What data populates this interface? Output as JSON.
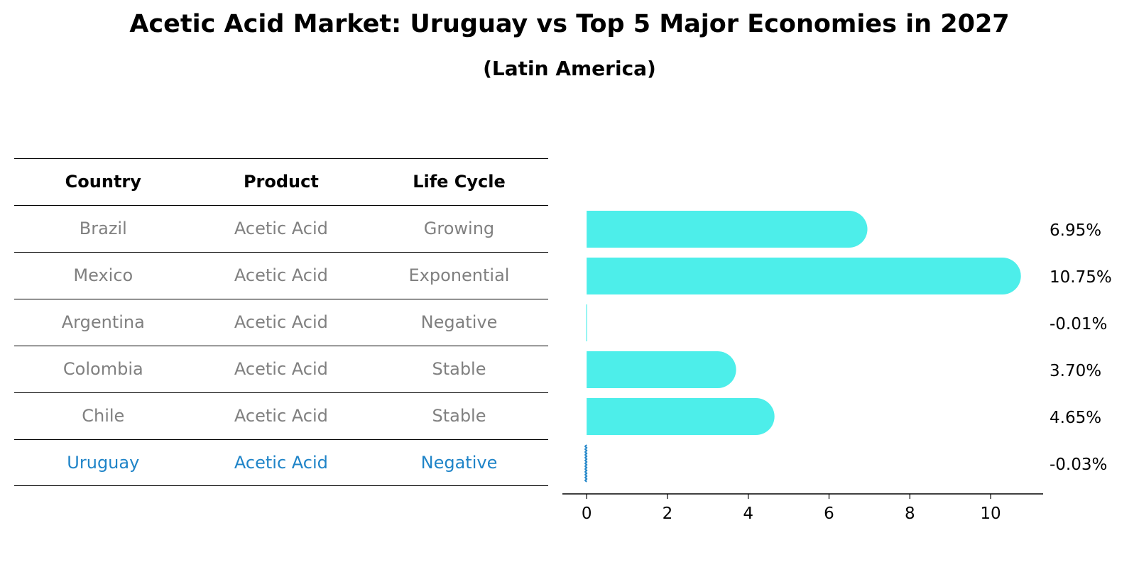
{
  "title": "Acetic Acid Market: Uruguay vs Top 5 Major Economies in 2027",
  "subtitle": "(Latin America)",
  "table": {
    "headers": [
      "Country",
      "Product",
      "Life Cycle"
    ],
    "rows": [
      {
        "country": "Brazil",
        "product": "Acetic Acid",
        "life_cycle": "Growing"
      },
      {
        "country": "Mexico",
        "product": "Acetic Acid",
        "life_cycle": "Exponential"
      },
      {
        "country": "Argentina",
        "product": "Acetic Acid",
        "life_cycle": "Negative"
      },
      {
        "country": "Colombia",
        "product": "Acetic Acid",
        "life_cycle": "Stable"
      },
      {
        "country": "Chile",
        "product": "Acetic Acid",
        "life_cycle": "Stable"
      },
      {
        "country": "Uruguay",
        "product": "Acetic Acid",
        "life_cycle": "Negative"
      }
    ]
  },
  "colors": {
    "bar": "#4deeea",
    "highlight": "#1f84c8",
    "muted_text": "#808080"
  },
  "chart_data": {
    "type": "bar",
    "orientation": "horizontal",
    "categories": [
      "Brazil",
      "Mexico",
      "Argentina",
      "Colombia",
      "Chile",
      "Uruguay"
    ],
    "values": [
      6.95,
      10.75,
      -0.01,
      3.7,
      4.65,
      -0.03
    ],
    "value_labels": [
      "6.95%",
      "10.75%",
      "-0.01%",
      "3.70%",
      "4.65%",
      "-0.03%"
    ],
    "highlight_category": "Uruguay",
    "xlim": [
      -0.6,
      11.3
    ],
    "xticks": [
      0,
      2,
      4,
      6,
      8,
      10
    ],
    "xtick_labels": [
      "0",
      "2",
      "4",
      "6",
      "8",
      "10"
    ],
    "grid": false,
    "legend": "none"
  }
}
